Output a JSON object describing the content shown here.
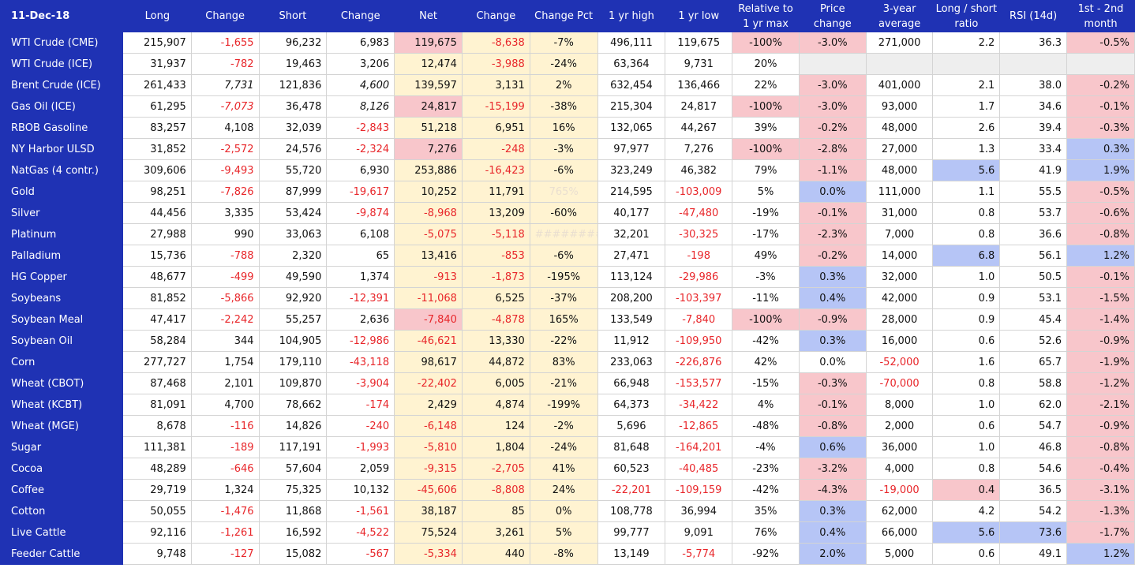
{
  "headers": [
    "11-Dec-18",
    "Long",
    "Change",
    "Short",
    "Change",
    "Net",
    "Change",
    "Change Pct",
    "1 yr high",
    "1 yr low",
    "Relative to 1 yr max",
    "Price change",
    "3-year average",
    "Long / short ratio",
    "RSI (14d)",
    "1st - 2nd month"
  ],
  "colors": {
    "header_blue": "#1f32b4",
    "negative_red": "#e8262a",
    "pink": "#f8c6cb",
    "yellow": "#fff3d1",
    "blue": "#b6c5f6",
    "grey": "#eeeeee"
  },
  "rows": [
    {
      "name": "WTI Crude (CME)",
      "long": "215,907",
      "long_chg": "-1,655",
      "short": "96,232",
      "short_chg": "6,983",
      "net": "119,675",
      "net_chg": "-8,638",
      "chg_pct": "-7%",
      "high": "496,111",
      "low": "119,675",
      "rel": "-100%",
      "price": "-3.0%",
      "avg": "271,000",
      "ratio": "2.2",
      "rsi": "36.3",
      "spread": "-0.5%"
    },
    {
      "name": "WTI Crude (ICE)",
      "long": "31,937",
      "long_chg": "-782",
      "short": "19,463",
      "short_chg": "3,206",
      "net": "12,474",
      "net_chg": "-3,988",
      "chg_pct": "-24%",
      "high": "63,364",
      "low": "9,731",
      "rel": "20%",
      "price": "",
      "avg": "",
      "ratio": "",
      "rsi": "",
      "spread": ""
    },
    {
      "name": "Brent Crude (ICE)",
      "long": "261,433",
      "long_chg": "7,731",
      "short": "121,836",
      "short_chg": "4,600",
      "net": "139,597",
      "net_chg": "3,131",
      "chg_pct": "2%",
      "high": "632,454",
      "low": "136,466",
      "rel": "22%",
      "price": "-3.0%",
      "avg": "401,000",
      "ratio": "2.1",
      "rsi": "38.0",
      "spread": "-0.2%"
    },
    {
      "name": "Gas Oil (ICE)",
      "long": "61,295",
      "long_chg": "-7,073",
      "short": "36,478",
      "short_chg": "8,126",
      "net": "24,817",
      "net_chg": "-15,199",
      "chg_pct": "-38%",
      "high": "215,304",
      "low": "24,817",
      "rel": "-100%",
      "price": "-3.0%",
      "avg": "93,000",
      "ratio": "1.7",
      "rsi": "34.6",
      "spread": "-0.1%"
    },
    {
      "name": "RBOB Gasoline",
      "long": "83,257",
      "long_chg": "4,108",
      "short": "32,039",
      "short_chg": "-2,843",
      "net": "51,218",
      "net_chg": "6,951",
      "chg_pct": "16%",
      "high": "132,065",
      "low": "44,267",
      "rel": "39%",
      "price": "-0.2%",
      "avg": "48,000",
      "ratio": "2.6",
      "rsi": "39.4",
      "spread": "-0.3%"
    },
    {
      "name": "NY Harbor ULSD",
      "long": "31,852",
      "long_chg": "-2,572",
      "short": "24,576",
      "short_chg": "-2,324",
      "net": "7,276",
      "net_chg": "-248",
      "chg_pct": "-3%",
      "high": "97,977",
      "low": "7,276",
      "rel": "-100%",
      "price": "-2.8%",
      "avg": "27,000",
      "ratio": "1.3",
      "rsi": "33.4",
      "spread": "0.3%"
    },
    {
      "name": "NatGas (4 contr.)",
      "long": "309,606",
      "long_chg": "-9,493",
      "short": "55,720",
      "short_chg": "6,930",
      "net": "253,886",
      "net_chg": "-16,423",
      "chg_pct": "-6%",
      "high": "323,249",
      "low": "46,382",
      "rel": "79%",
      "price": "-1.1%",
      "avg": "48,000",
      "ratio": "5.6",
      "rsi": "41.9",
      "spread": "1.9%"
    },
    {
      "name": "Gold",
      "long": "98,251",
      "long_chg": "-7,826",
      "short": "87,999",
      "short_chg": "-19,617",
      "net": "10,252",
      "net_chg": "11,791",
      "chg_pct": "765%",
      "high": "214,595",
      "low": "-103,009",
      "rel": "5%",
      "price": "0.0%",
      "avg": "111,000",
      "ratio": "1.1",
      "rsi": "55.5",
      "spread": "-0.5%"
    },
    {
      "name": "Silver",
      "long": "44,456",
      "long_chg": "3,335",
      "short": "53,424",
      "short_chg": "-9,874",
      "net": "-8,968",
      "net_chg": "13,209",
      "chg_pct": "-60%",
      "high": "40,177",
      "low": "-47,480",
      "rel": "-19%",
      "price": "-0.1%",
      "avg": "31,000",
      "ratio": "0.8",
      "rsi": "53.7",
      "spread": "-0.6%"
    },
    {
      "name": "Platinum",
      "long": "27,988",
      "long_chg": "990",
      "short": "33,063",
      "short_chg": "6,108",
      "net": "-5,075",
      "net_chg": "-5,118",
      "chg_pct": "########",
      "high": "32,201",
      "low": "-30,325",
      "rel": "-17%",
      "price": "-2.3%",
      "avg": "7,000",
      "ratio": "0.8",
      "rsi": "36.6",
      "spread": "-0.8%"
    },
    {
      "name": "Palladium",
      "long": "15,736",
      "long_chg": "-788",
      "short": "2,320",
      "short_chg": "65",
      "net": "13,416",
      "net_chg": "-853",
      "chg_pct": "-6%",
      "high": "27,471",
      "low": "-198",
      "rel": "49%",
      "price": "-0.2%",
      "avg": "14,000",
      "ratio": "6.8",
      "rsi": "56.1",
      "spread": "1.2%"
    },
    {
      "name": "HG Copper",
      "long": "48,677",
      "long_chg": "-499",
      "short": "49,590",
      "short_chg": "1,374",
      "net": "-913",
      "net_chg": "-1,873",
      "chg_pct": "-195%",
      "high": "113,124",
      "low": "-29,986",
      "rel": "-3%",
      "price": "0.3%",
      "avg": "32,000",
      "ratio": "1.0",
      "rsi": "50.5",
      "spread": "-0.1%"
    },
    {
      "name": "Soybeans",
      "long": "81,852",
      "long_chg": "-5,866",
      "short": "92,920",
      "short_chg": "-12,391",
      "net": "-11,068",
      "net_chg": "6,525",
      "chg_pct": "-37%",
      "high": "208,200",
      "low": "-103,397",
      "rel": "-11%",
      "price": "0.4%",
      "avg": "42,000",
      "ratio": "0.9",
      "rsi": "53.1",
      "spread": "-1.5%"
    },
    {
      "name": "Soybean Meal",
      "long": "47,417",
      "long_chg": "-2,242",
      "short": "55,257",
      "short_chg": "2,636",
      "net": "-7,840",
      "net_chg": "-4,878",
      "chg_pct": "165%",
      "high": "133,549",
      "low": "-7,840",
      "rel": "-100%",
      "price": "-0.9%",
      "avg": "28,000",
      "ratio": "0.9",
      "rsi": "45.4",
      "spread": "-1.4%"
    },
    {
      "name": "Soybean Oil",
      "long": "58,284",
      "long_chg": "344",
      "short": "104,905",
      "short_chg": "-12,986",
      "net": "-46,621",
      "net_chg": "13,330",
      "chg_pct": "-22%",
      "high": "11,912",
      "low": "-109,950",
      "rel": "-42%",
      "price": "0.3%",
      "avg": "16,000",
      "ratio": "0.6",
      "rsi": "52.6",
      "spread": "-0.9%"
    },
    {
      "name": "Corn",
      "long": "277,727",
      "long_chg": "1,754",
      "short": "179,110",
      "short_chg": "-43,118",
      "net": "98,617",
      "net_chg": "44,872",
      "chg_pct": "83%",
      "high": "233,063",
      "low": "-226,876",
      "rel": "42%",
      "price": "0.0%",
      "avg": "-52,000",
      "ratio": "1.6",
      "rsi": "65.7",
      "spread": "-1.9%"
    },
    {
      "name": "Wheat (CBOT)",
      "long": "87,468",
      "long_chg": "2,101",
      "short": "109,870",
      "short_chg": "-3,904",
      "net": "-22,402",
      "net_chg": "6,005",
      "chg_pct": "-21%",
      "high": "66,948",
      "low": "-153,577",
      "rel": "-15%",
      "price": "-0.3%",
      "avg": "-70,000",
      "ratio": "0.8",
      "rsi": "58.8",
      "spread": "-1.2%"
    },
    {
      "name": "Wheat (KCBT)",
      "long": "81,091",
      "long_chg": "4,700",
      "short": "78,662",
      "short_chg": "-174",
      "net": "2,429",
      "net_chg": "4,874",
      "chg_pct": "-199%",
      "high": "64,373",
      "low": "-34,422",
      "rel": "4%",
      "price": "-0.1%",
      "avg": "8,000",
      "ratio": "1.0",
      "rsi": "62.0",
      "spread": "-2.1%"
    },
    {
      "name": "Wheat (MGE)",
      "long": "8,678",
      "long_chg": "-116",
      "short": "14,826",
      "short_chg": "-240",
      "net": "-6,148",
      "net_chg": "124",
      "chg_pct": "-2%",
      "high": "5,696",
      "low": "-12,865",
      "rel": "-48%",
      "price": "-0.8%",
      "avg": "2,000",
      "ratio": "0.6",
      "rsi": "54.7",
      "spread": "-0.9%"
    },
    {
      "name": "Sugar",
      "long": "111,381",
      "long_chg": "-189",
      "short": "117,191",
      "short_chg": "-1,993",
      "net": "-5,810",
      "net_chg": "1,804",
      "chg_pct": "-24%",
      "high": "81,648",
      "low": "-164,201",
      "rel": "-4%",
      "price": "0.6%",
      "avg": "36,000",
      "ratio": "1.0",
      "rsi": "46.8",
      "spread": "-0.8%"
    },
    {
      "name": "Cocoa",
      "long": "48,289",
      "long_chg": "-646",
      "short": "57,604",
      "short_chg": "2,059",
      "net": "-9,315",
      "net_chg": "-2,705",
      "chg_pct": "41%",
      "high": "60,523",
      "low": "-40,485",
      "rel": "-23%",
      "price": "-3.2%",
      "avg": "4,000",
      "ratio": "0.8",
      "rsi": "54.6",
      "spread": "-0.4%"
    },
    {
      "name": "Coffee",
      "long": "29,719",
      "long_chg": "1,324",
      "short": "75,325",
      "short_chg": "10,132",
      "net": "-45,606",
      "net_chg": "-8,808",
      "chg_pct": "24%",
      "high": "-22,201",
      "low": "-109,159",
      "rel": "-42%",
      "price": "-4.3%",
      "avg": "-19,000",
      "ratio": "0.4",
      "rsi": "36.5",
      "spread": "-3.1%"
    },
    {
      "name": "Cotton",
      "long": "50,055",
      "long_chg": "-1,476",
      "short": "11,868",
      "short_chg": "-1,561",
      "net": "38,187",
      "net_chg": "85",
      "chg_pct": "0%",
      "high": "108,778",
      "low": "36,994",
      "rel": "35%",
      "price": "0.3%",
      "avg": "62,000",
      "ratio": "4.2",
      "rsi": "54.2",
      "spread": "-1.3%"
    },
    {
      "name": "Live Cattle",
      "long": "92,116",
      "long_chg": "-1,261",
      "short": "16,592",
      "short_chg": "-4,522",
      "net": "75,524",
      "net_chg": "3,261",
      "chg_pct": "5%",
      "high": "99,777",
      "low": "9,091",
      "rel": "76%",
      "price": "0.4%",
      "avg": "66,000",
      "ratio": "5.6",
      "rsi": "73.6",
      "spread": "-1.7%"
    },
    {
      "name": "Feeder Cattle",
      "long": "9,748",
      "long_chg": "-127",
      "short": "15,082",
      "short_chg": "-567",
      "net": "-5,334",
      "net_chg": "440",
      "chg_pct": "-8%",
      "high": "13,149",
      "low": "-5,774",
      "rel": "-92%",
      "price": "2.0%",
      "avg": "5,000",
      "ratio": "0.6",
      "rsi": "49.1",
      "spread": "1.2%"
    }
  ]
}
